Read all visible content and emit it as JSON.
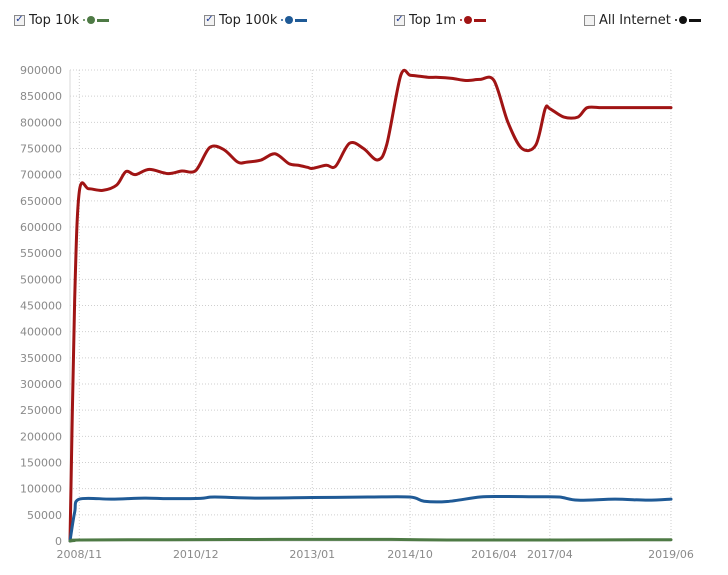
{
  "legend": [
    {
      "label": "Top 10k",
      "checked": true,
      "color": "#4e7a45"
    },
    {
      "label": "Top 100k",
      "checked": true,
      "color": "#1f5a96"
    },
    {
      "label": "Top 1m",
      "checked": true,
      "color": "#a01414"
    },
    {
      "label": "All Internet",
      "checked": false,
      "color": "#111111"
    }
  ],
  "check_glyph": "✓",
  "chart_data": {
    "type": "line",
    "title": "",
    "xlabel": "",
    "ylabel": "",
    "ylim": [
      0,
      900000
    ],
    "yticks": [
      0,
      50000,
      100000,
      150000,
      200000,
      250000,
      300000,
      350000,
      400000,
      450000,
      500000,
      550000,
      600000,
      650000,
      700000,
      750000,
      800000,
      850000,
      900000
    ],
    "yticklabels": [
      "0",
      "50000",
      "100000",
      "150000",
      "200000",
      "250000",
      "300000",
      "350000",
      "400000",
      "450000",
      "500000",
      "550000",
      "600000",
      "650000",
      "700000",
      "750000",
      "800000",
      "850000",
      "900000"
    ],
    "xlim": [
      "2008-09",
      "2019-06"
    ],
    "xticks": [
      "2008-11",
      "2010-12",
      "2013-01",
      "2014-10",
      "2016-04",
      "2017-04",
      "2019-06"
    ],
    "xticklabels": [
      "2008/11",
      "2010/12",
      "2013/01",
      "2014/10",
      "2016/04",
      "2017/04",
      "2019/06"
    ],
    "grid": true,
    "series": [
      {
        "name": "Top 1m",
        "color": "#a01414",
        "x": [
          "2008-09",
          "2008-10",
          "2008-11",
          "2009-01",
          "2009-04",
          "2009-07",
          "2009-09",
          "2009-11",
          "2010-02",
          "2010-06",
          "2010-09",
          "2010-12",
          "2011-03",
          "2011-06",
          "2011-09",
          "2011-11",
          "2012-02",
          "2012-05",
          "2012-08",
          "2012-10",
          "2012-12",
          "2013-01",
          "2013-04",
          "2013-06",
          "2013-09",
          "2013-12",
          "2014-03",
          "2014-05",
          "2014-08",
          "2014-10",
          "2014-12",
          "2015-02",
          "2015-04",
          "2015-07",
          "2015-10",
          "2016-01",
          "2016-04",
          "2016-07",
          "2016-10",
          "2017-01",
          "2017-03",
          "2017-04",
          "2017-07",
          "2017-10",
          "2017-12",
          "2018-03",
          "2018-06",
          "2018-09",
          "2018-12",
          "2019-03",
          "2019-06"
        ],
        "values": [
          0,
          460000,
          668000,
          673000,
          670000,
          680000,
          706000,
          700000,
          710000,
          702000,
          707000,
          708000,
          752000,
          748000,
          724000,
          724000,
          728000,
          740000,
          721000,
          718000,
          714000,
          712000,
          718000,
          716000,
          760000,
          750000,
          728000,
          758000,
          890000,
          890000,
          888000,
          886000,
          886000,
          884000,
          880000,
          882000,
          880000,
          800000,
          750000,
          757000,
          826000,
          826000,
          810000,
          810000,
          828000,
          828000,
          828000,
          828000,
          828000,
          828000,
          828000
        ]
      },
      {
        "name": "Top 100k",
        "color": "#1f5a96",
        "x": [
          "2008-09",
          "2008-10",
          "2008-11",
          "2009-06",
          "2010-01",
          "2010-06",
          "2011-01",
          "2011-04",
          "2012-01",
          "2013-01",
          "2014-01",
          "2014-10",
          "2015-01",
          "2015-06",
          "2016-01",
          "2016-06",
          "2017-01",
          "2017-06",
          "2017-10",
          "2018-06",
          "2019-01",
          "2019-06"
        ],
        "values": [
          0,
          55000,
          80000,
          80000,
          82000,
          81000,
          81500,
          84000,
          82000,
          83000,
          84000,
          84000,
          76000,
          75500,
          84000,
          85000,
          84500,
          84000,
          78000,
          80000,
          78000,
          80000
        ]
      },
      {
        "name": "Top 10k",
        "color": "#4e7a45",
        "x": [
          "2008-09",
          "2008-10",
          "2008-11",
          "2010-06",
          "2012-06",
          "2014-06",
          "2015-06",
          "2017-06",
          "2019-06"
        ],
        "values": [
          0,
          1000,
          2000,
          2500,
          3000,
          3000,
          2000,
          2000,
          2500
        ]
      }
    ]
  }
}
